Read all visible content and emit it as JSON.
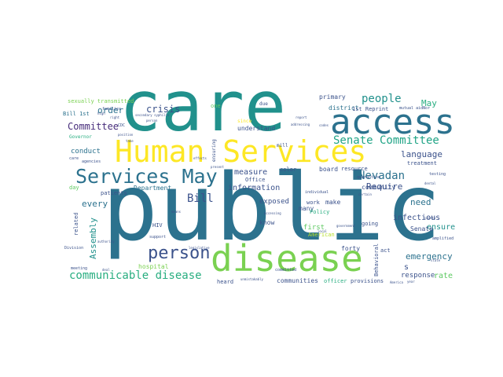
{
  "words": {
    "w_public": "public",
    "w_care": "care",
    "w_access": "access",
    "w_human_services": "Human Services",
    "w_disease": "disease",
    "w_services_may": "Services May",
    "w_person": "person",
    "w_communicable": "communicable disease",
    "w_senate_committee": "Senate Committee",
    "w_nevadan": "Nevadan",
    "w_people": "people",
    "w_may": "May",
    "w_crisis": "crisis",
    "w_order": "order",
    "w_committee": "Committee",
    "w_bill": "Bill",
    "w_language": "language",
    "w_require": "Require",
    "w_emergency": "emergency",
    "w_infectious": "infectious",
    "w_need": "need",
    "w_ensure": "ensure",
    "w_assembly": "Assembly",
    "w_every": "every",
    "w_information": "information",
    "w_measure": "measure",
    "w_exposed": "exposed",
    "w_conduct": "conduct",
    "w_department": "Department",
    "w_community": "community",
    "w_communities": "communities",
    "w_response": "response",
    "w_rate": "rate",
    "w_first": "first",
    "w_primary": "primary",
    "w_district": "district",
    "w_reprint": "1st Reprint",
    "w_sexually": "sexually transmitted",
    "w_bill_1st": "Bill 1st",
    "w_understand": "understand",
    "w_many": "many",
    "w_know": "know",
    "w_american": "American",
    "w_office": "Office",
    "w_forty": "forty",
    "w_hospital": "hospital",
    "w_heard": "heard",
    "w_officer": "officer",
    "w_provisions": "provisions",
    "w_senate": "Senate",
    "w_treatment": "treatment",
    "w_board": "board",
    "w_resource": "resource",
    "w_make": "make",
    "w_work": "work",
    "w_policy": "Policy",
    "w_going": "going",
    "w_behavioral": "Behavioral",
    "w_patients": "patients",
    "w_related": "related",
    "w_day": "day",
    "w_hiv": "HIV",
    "w_governor": "Governor",
    "w_color": "color",
    "w_one": "one",
    "w_since": "since",
    "w_due": "due",
    "w_mill": "mill",
    "w_individual": "individual",
    "w_ensuring": "ensuring",
    "w_s": "s",
    "w_act": "act",
    "w_families": "families",
    "w_testing": "testing",
    "w_amplified": "amplified",
    "w_dental": "dental",
    "w_quarantine": "quarantine",
    "w_meeting": "meeting",
    "w_division": "Division",
    "w_support": "support",
    "w_committed": "committed",
    "w_mutual_aid": "mutual aidNor",
    "w_georgetown": "Georgetown",
    "w_healthy": "healthy",
    "w_lay": "lay",
    "w_cdc": "CDC",
    "w_agencies": "agencies",
    "w_care_small": "care",
    "w_secondary": "secondary syphilis",
    "w_person_small": "person",
    "w_fail": "fail",
    "w_right": "right",
    "w_high": "high",
    "w_position": "position",
    "w_take": "take",
    "w_test": "test",
    "w_legislative": "legislative",
    "w_equitable": "equitable",
    "w_addressing": "addressing",
    "w_codes": "codes",
    "w_certain": "certain",
    "w_report": "report",
    "w_local": "local",
    "w_government": "government",
    "w_future": "future",
    "w_bone": "bone",
    "w_america": "America",
    "w_year": "year",
    "w_deal": "deal",
    "w_ultimately": "unmistakably",
    "w_limit": "limit",
    "w_bay": "bay",
    "w_living": "living",
    "w_vaccine": "vaccine",
    "w_include": "include",
    "w_authority": "authority",
    "w_means": "means",
    "w_present": "present",
    "w_rural": "rural",
    "w_expand": "expand",
    "w_nurse": "nurse",
    "w_effects": "effects",
    "w_disparities": "disparities",
    "w_accessing": "accessing",
    "w_workers": "workers",
    "w_involved": "involved",
    "w_mortality": "mortality",
    "w_reduce": "reduce",
    "w_county": "county",
    "w_state": "state"
  },
  "colors": {
    "teal_dark": "#2c728e",
    "teal": "#21918c",
    "blue": "#3b528b",
    "indigo": "#472d7b",
    "purple_dark": "#440154",
    "green": "#5ec962",
    "green_light": "#7ad151",
    "lime": "#b5de2b",
    "yellow": "#fde725",
    "aqua": "#28ae80",
    "sea": "#20a486"
  }
}
